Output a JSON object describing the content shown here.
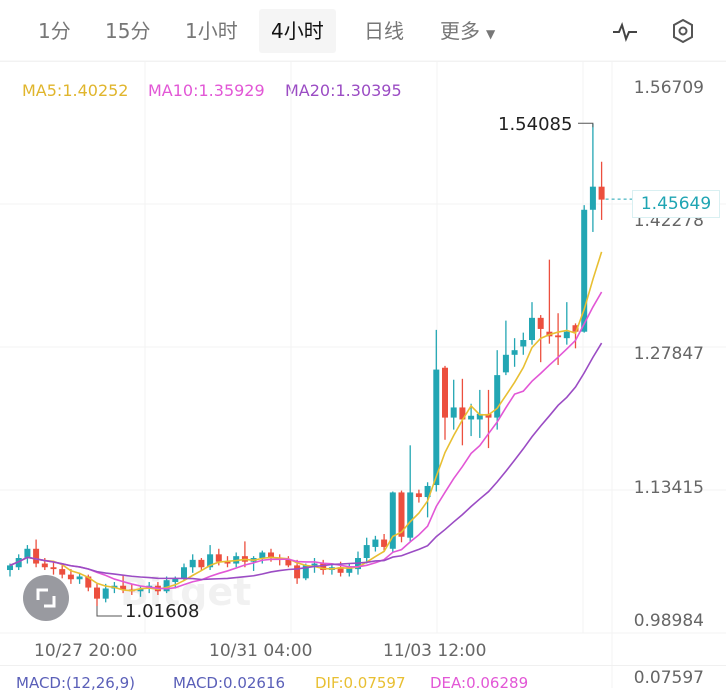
{
  "tabs": [
    {
      "label": "1分"
    },
    {
      "label": "15分"
    },
    {
      "label": "1小时"
    },
    {
      "label": "4小时",
      "active": true
    },
    {
      "label": "日线"
    },
    {
      "label": "更多"
    }
  ],
  "icons": {
    "indicator": "pulse-icon",
    "settings": "hexagon-settings-icon",
    "more": "caret-down-icon",
    "fullscreen": "expand-icon"
  },
  "legend": {
    "ma5": "MA5:1.40252",
    "ma10": "MA10:1.35929",
    "ma20": "MA20:1.30395"
  },
  "watermark": "Bitget",
  "colors": {
    "up": "#22a6b3",
    "down": "#ec4f3e",
    "ma5": "#e8bf32",
    "ma10": "#e257d6",
    "ma20": "#9b4cc4",
    "price_tag": "#1fa5b3"
  },
  "chart_data": {
    "type": "candlestick",
    "y_ticks": [
      "1.56709",
      "1.42278",
      "1.27847",
      "1.13415",
      "0.98984"
    ],
    "x_ticks": [
      "10/27 20:00",
      "10/31 04:00",
      "11/03 12:00"
    ],
    "high_label": "1.54085",
    "low_label": "1.01608",
    "last_price": "1.45649",
    "ylim": [
      0.98984,
      1.56709
    ],
    "ohlc": [
      [
        1.055,
        1.062,
        1.048,
        1.06
      ],
      [
        1.058,
        1.072,
        1.055,
        1.068
      ],
      [
        1.068,
        1.082,
        1.062,
        1.078
      ],
      [
        1.078,
        1.088,
        1.058,
        1.062
      ],
      [
        1.062,
        1.068,
        1.055,
        1.058
      ],
      [
        1.058,
        1.064,
        1.05,
        1.056
      ],
      [
        1.056,
        1.06,
        1.046,
        1.05
      ],
      [
        1.05,
        1.056,
        1.04,
        1.045
      ],
      [
        1.045,
        1.052,
        1.04,
        1.048
      ],
      [
        1.048,
        1.05,
        1.032,
        1.036
      ],
      [
        1.036,
        1.04,
        1.016,
        1.024
      ],
      [
        1.024,
        1.04,
        1.02,
        1.035
      ],
      [
        1.035,
        1.042,
        1.03,
        1.038
      ],
      [
        1.038,
        1.05,
        1.03,
        1.034
      ],
      [
        1.034,
        1.04,
        1.028,
        1.032
      ],
      [
        1.032,
        1.038,
        1.026,
        1.035
      ],
      [
        1.035,
        1.042,
        1.03,
        1.038
      ],
      [
        1.038,
        1.042,
        1.028,
        1.032
      ],
      [
        1.032,
        1.048,
        1.03,
        1.044
      ],
      [
        1.042,
        1.048,
        1.035,
        1.046
      ],
      [
        1.046,
        1.062,
        1.044,
        1.058
      ],
      [
        1.058,
        1.072,
        1.052,
        1.066
      ],
      [
        1.066,
        1.068,
        1.054,
        1.058
      ],
      [
        1.058,
        1.082,
        1.055,
        1.072
      ],
      [
        1.072,
        1.078,
        1.06,
        1.064
      ],
      [
        1.064,
        1.07,
        1.058,
        1.062
      ],
      [
        1.062,
        1.074,
        1.058,
        1.07
      ],
      [
        1.07,
        1.086,
        1.058,
        1.064
      ],
      [
        1.064,
        1.07,
        1.054,
        1.068
      ],
      [
        1.068,
        1.076,
        1.062,
        1.074
      ],
      [
        1.074,
        1.078,
        1.064,
        1.068
      ],
      [
        1.068,
        1.072,
        1.06,
        1.066
      ],
      [
        1.066,
        1.07,
        1.058,
        1.06
      ],
      [
        1.06,
        1.066,
        1.04,
        1.046
      ],
      [
        1.046,
        1.062,
        1.044,
        1.06
      ],
      [
        1.06,
        1.068,
        1.052,
        1.062
      ],
      [
        1.062,
        1.066,
        1.05,
        1.055
      ],
      [
        1.055,
        1.062,
        1.05,
        1.058
      ],
      [
        1.058,
        1.064,
        1.048,
        1.052
      ],
      [
        1.052,
        1.062,
        1.048,
        1.058
      ],
      [
        1.056,
        1.075,
        1.05,
        1.068
      ],
      [
        1.068,
        1.09,
        1.062,
        1.082
      ],
      [
        1.08,
        1.092,
        1.075,
        1.088
      ],
      [
        1.088,
        1.094,
        1.076,
        1.08
      ],
      [
        1.078,
        1.14,
        1.074,
        1.139
      ],
      [
        1.139,
        1.141,
        1.085,
        1.091
      ],
      [
        1.09,
        1.19,
        1.086,
        1.139
      ],
      [
        1.138,
        1.142,
        1.128,
        1.134
      ],
      [
        1.134,
        1.15,
        1.112,
        1.146
      ],
      [
        1.147,
        1.315,
        1.14,
        1.272
      ],
      [
        1.274,
        1.276,
        1.196,
        1.22
      ],
      [
        1.22,
        1.261,
        1.207,
        1.231
      ],
      [
        1.231,
        1.262,
        1.19,
        1.218
      ],
      [
        1.218,
        1.235,
        1.2,
        1.222
      ],
      [
        1.218,
        1.25,
        1.198,
        1.224
      ],
      [
        1.224,
        1.25,
        1.187,
        1.22
      ],
      [
        1.22,
        1.293,
        1.207,
        1.266
      ],
      [
        1.269,
        1.325,
        1.266,
        1.288
      ],
      [
        1.288,
        1.306,
        1.275,
        1.293
      ],
      [
        1.297,
        1.312,
        1.288,
        1.304
      ],
      [
        1.304,
        1.345,
        1.299,
        1.328
      ],
      [
        1.328,
        1.331,
        1.28,
        1.316
      ],
      [
        1.313,
        1.391,
        1.3,
        1.308
      ],
      [
        1.309,
        1.333,
        1.277,
        1.307
      ],
      [
        1.306,
        1.345,
        1.299,
        1.313
      ],
      [
        1.32,
        1.322,
        1.295,
        1.313
      ],
      [
        1.313,
        1.45,
        1.312,
        1.445
      ],
      [
        1.445,
        1.538,
        1.421,
        1.47
      ],
      [
        1.47,
        1.497,
        1.434,
        1.456
      ]
    ]
  },
  "macd": {
    "params": "MACD:(12,26,9)",
    "macd": "MACD:0.02616",
    "dif": "DIF:0.07597",
    "dea": "DEA:0.06289",
    "axis": "0.07597"
  }
}
